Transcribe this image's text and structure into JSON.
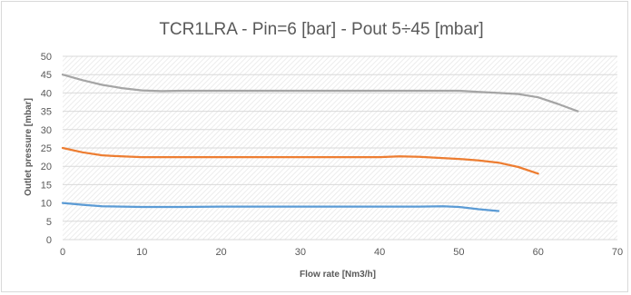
{
  "chart_data": {
    "type": "line",
    "title": "TCR1LRA - Pin=6 [bar] - Pout 5÷45 [mbar]",
    "xlabel": "Flow rate [Nm3/h]",
    "ylabel": "Outlet pressure [mbar]",
    "xlim": [
      0,
      70
    ],
    "ylim": [
      0,
      50
    ],
    "xticks": [
      0,
      10,
      20,
      30,
      40,
      50,
      60,
      70
    ],
    "yticks": [
      0,
      5,
      10,
      15,
      20,
      25,
      30,
      35,
      40,
      45,
      50
    ],
    "grid": "hatched plot area",
    "legend": "none",
    "series": [
      {
        "color": "#a5a5a5",
        "x": [
          0,
          2.5,
          5,
          7.5,
          10,
          12.5,
          15,
          20,
          25,
          30,
          35,
          40,
          45,
          50,
          52.5,
          55,
          57.5,
          60,
          62.5,
          65
        ],
        "y": [
          45,
          43.5,
          42.2,
          41.3,
          40.7,
          40.5,
          40.6,
          40.6,
          40.6,
          40.6,
          40.6,
          40.6,
          40.6,
          40.6,
          40.3,
          40.0,
          39.7,
          38.8,
          37.0,
          35.0
        ]
      },
      {
        "color": "#ed7d31",
        "x": [
          0,
          2.5,
          5,
          7.5,
          10,
          15,
          20,
          25,
          30,
          35,
          40,
          42.5,
          45,
          50,
          52.5,
          55,
          57.5,
          60
        ],
        "y": [
          25,
          23.8,
          23.0,
          22.7,
          22.5,
          22.5,
          22.5,
          22.5,
          22.5,
          22.5,
          22.5,
          22.7,
          22.6,
          22.0,
          21.6,
          21.0,
          19.8,
          18.0
        ]
      },
      {
        "color": "#5b9bd5",
        "x": [
          0,
          2.5,
          5,
          7.5,
          10,
          15,
          20,
          25,
          30,
          35,
          40,
          45,
          48,
          50,
          52.5,
          55
        ],
        "y": [
          10,
          9.5,
          9.1,
          9.0,
          8.9,
          8.9,
          9.0,
          9.0,
          9.0,
          9.0,
          9.0,
          9.0,
          9.1,
          8.9,
          8.3,
          7.8
        ]
      }
    ]
  }
}
